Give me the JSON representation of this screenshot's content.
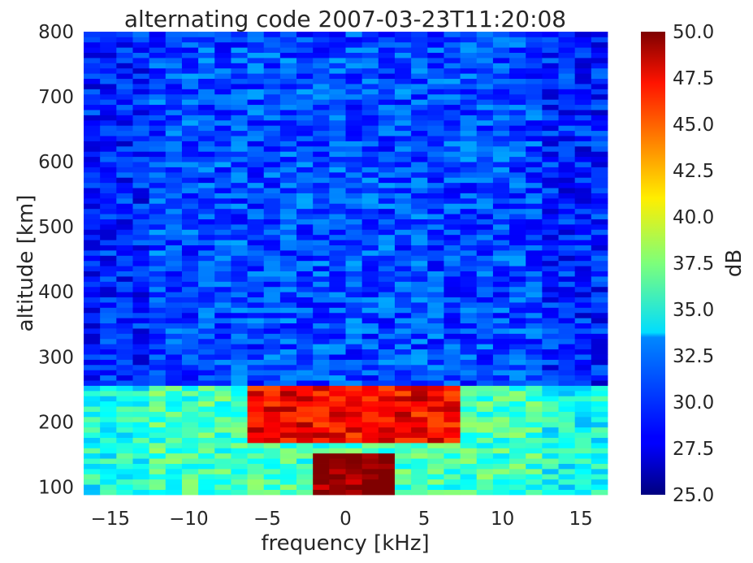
{
  "chart_data": {
    "type": "heatmap",
    "title": "alternating code 2007-03-23T11:20:08",
    "xlabel": "frequency [kHz]",
    "ylabel": "altitude [km]",
    "xlim": [
      -16.7,
      16.7
    ],
    "ylim": [
      88,
      800
    ],
    "xticks": [
      -15,
      -10,
      -5,
      0,
      5,
      10,
      15
    ],
    "xtick_labels": [
      "−15",
      "−10",
      "−5",
      "0",
      "5",
      "10",
      "15"
    ],
    "yticks": [
      100,
      200,
      300,
      400,
      500,
      600,
      700,
      800
    ],
    "ytick_labels": [
      "100",
      "200",
      "300",
      "400",
      "500",
      "600",
      "700",
      "800"
    ],
    "colormap": "jet",
    "colorbar": {
      "label": "dB",
      "range": [
        25.0,
        50.0
      ],
      "ticks": [
        25.0,
        27.5,
        30.0,
        32.5,
        35.0,
        37.5,
        40.0,
        42.5,
        45.0,
        47.5,
        50.0
      ],
      "tick_labels": [
        "25.0",
        "27.5",
        "30.0",
        "32.5",
        "35.0",
        "37.5",
        "40.0",
        "42.5",
        "45.0",
        "47.5",
        "50.0"
      ]
    },
    "grid": false,
    "n_freq_bins": 32,
    "freq_step_khz": 1.042,
    "n_range_gates": 89,
    "range_step_km": 8,
    "features": [
      {
        "region": "noise floor",
        "altitude_km": [
          270,
          800
        ],
        "freq_khz": [
          -16.7,
          16.7
        ],
        "level_db": 30
      },
      {
        "region": "low band",
        "altitude_km": [
          88,
          260
        ],
        "freq_khz": [
          -16.7,
          16.7
        ],
        "level_db": 36
      },
      {
        "region": "F-region echo",
        "altitude_km": [
          170,
          260
        ],
        "freq_khz": [
          -6.5,
          7.5
        ],
        "level_db": 47
      },
      {
        "region": "strong echo",
        "altitude_km": [
          88,
          150
        ],
        "freq_khz": [
          -2.2,
          3.2
        ],
        "level_db": 50
      }
    ]
  }
}
